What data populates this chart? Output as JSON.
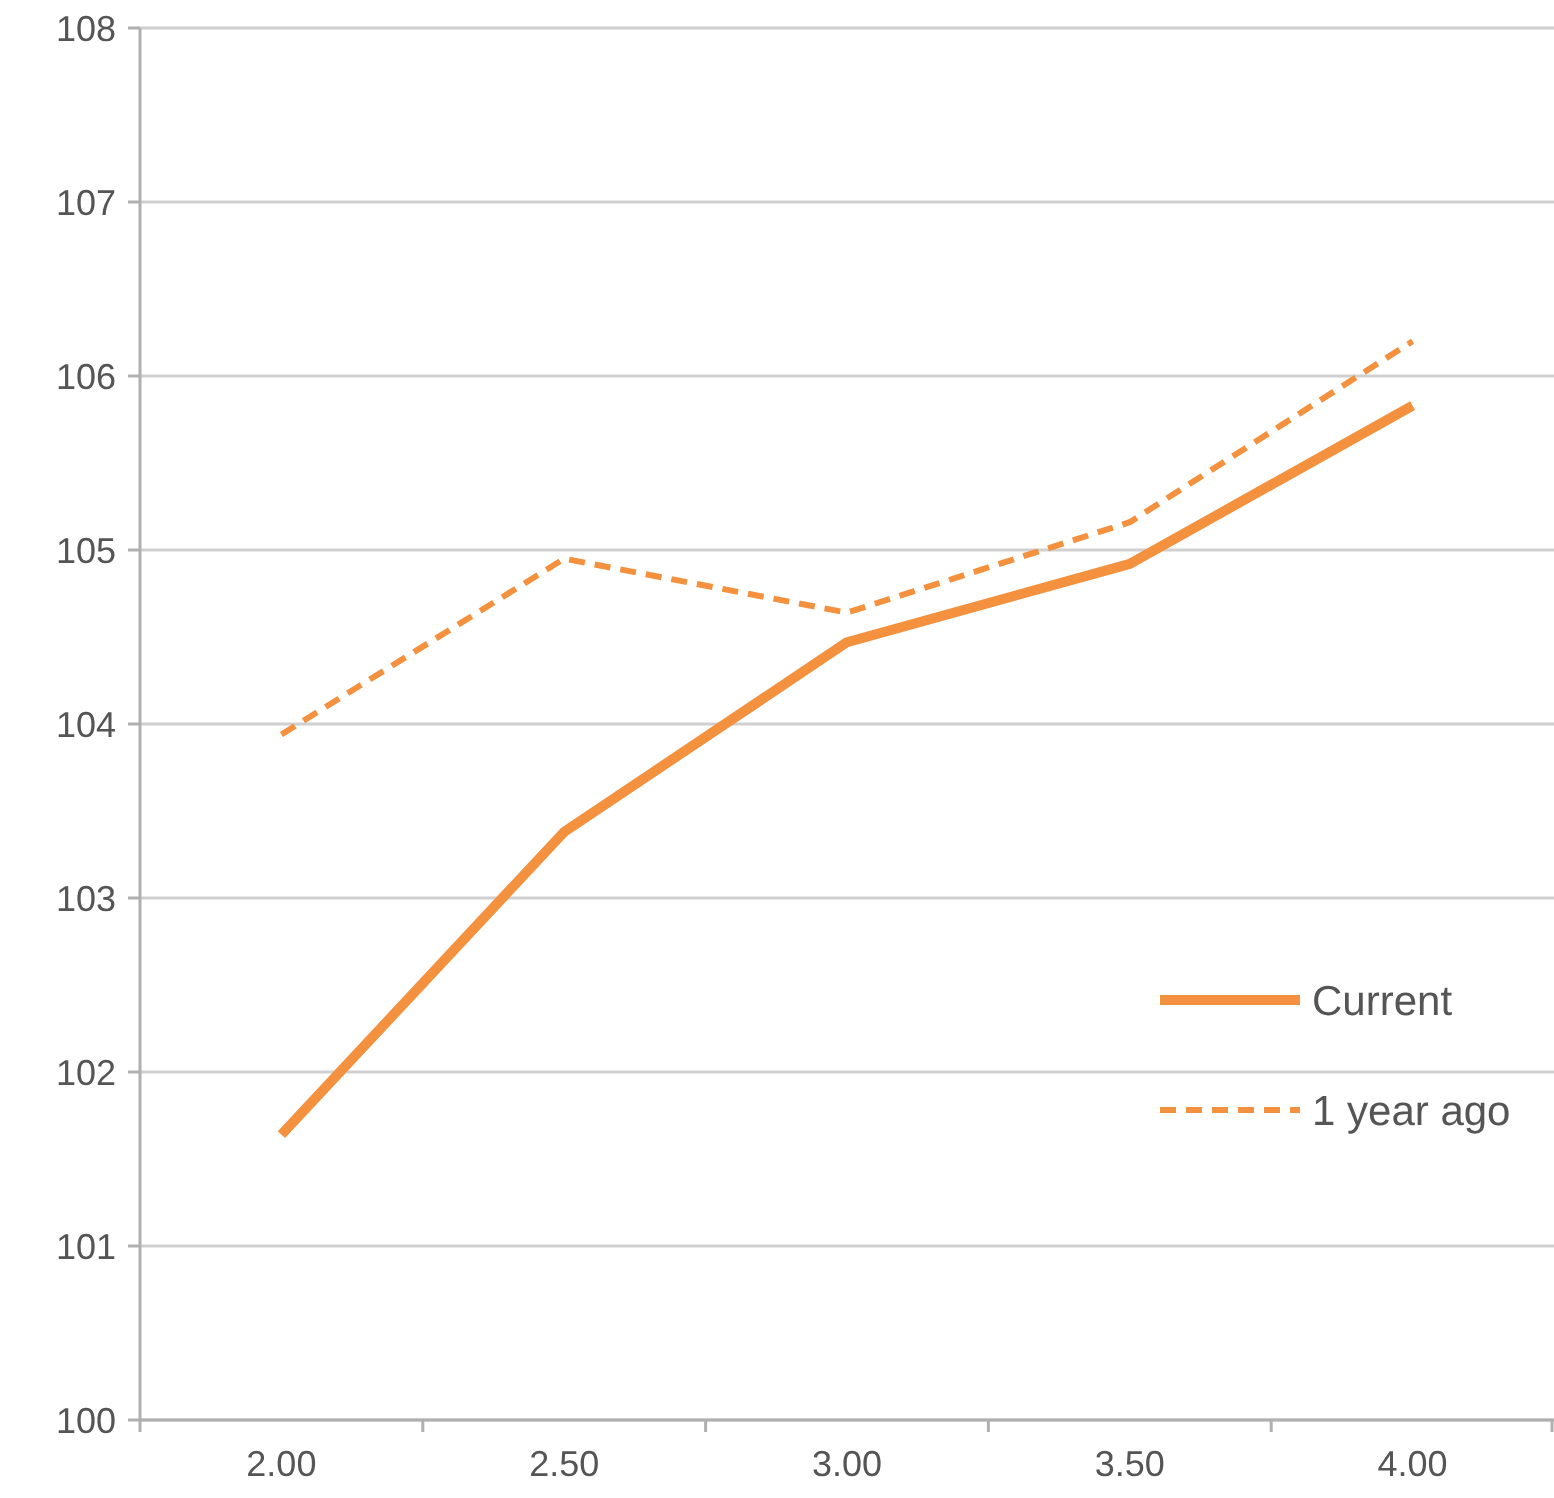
{
  "chart_data": {
    "type": "line",
    "categories": [
      "2.00",
      "2.50",
      "3.00",
      "3.50",
      "4.00"
    ],
    "ylim": [
      100,
      108
    ],
    "yticks": [
      100,
      101,
      102,
      103,
      104,
      105,
      106,
      107,
      108
    ],
    "grid": "y",
    "legend": "right",
    "series": [
      {
        "name": "Current",
        "color": "#f4913f",
        "line_style": "solid",
        "values": [
          101.64,
          103.38,
          104.47,
          104.92,
          105.83
        ]
      },
      {
        "name": "1 year ago",
        "color": "#f4913f",
        "line_style": "dashed",
        "values": [
          103.94,
          104.95,
          104.64,
          105.16,
          106.2
        ]
      }
    ]
  }
}
